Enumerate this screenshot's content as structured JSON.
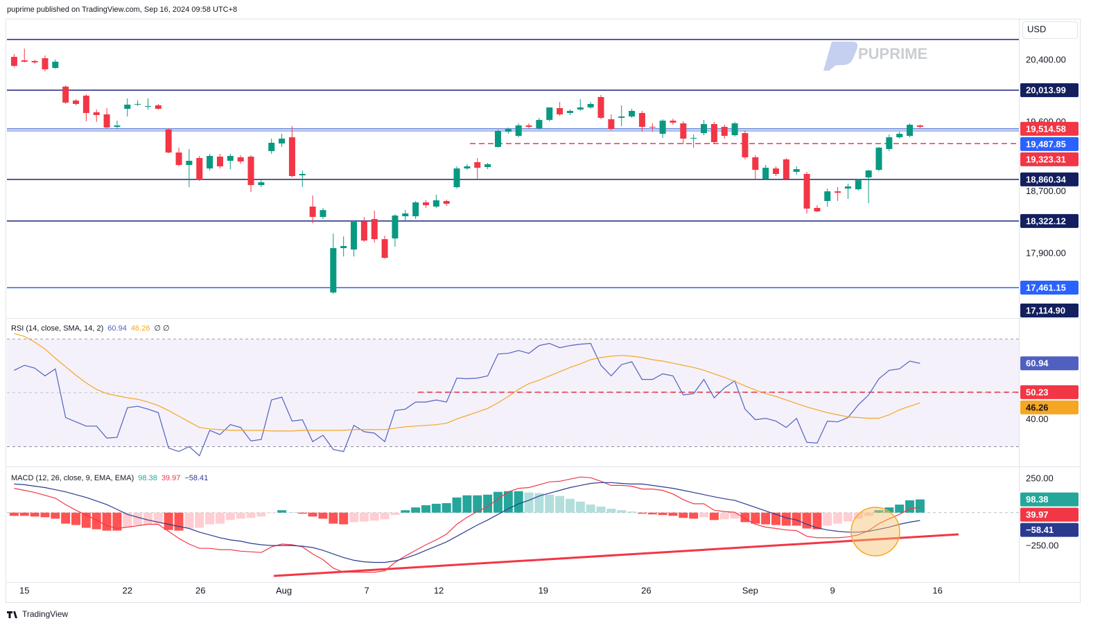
{
  "header": {
    "text": "puprime published on TradingView.com, Sep 16, 2024 09:58 UTC+8",
    "currency": "USD",
    "watermark": "PUPRIME",
    "footer": "TradingView"
  },
  "chart_data": [
    {
      "type": "candlestick",
      "up_color": "#089981",
      "down_color": "#f23645",
      "xlim": [
        -0.7,
        97.6
      ],
      "ylim": [
        17076,
        20929
      ],
      "yticks": [
        {
          "value": 20400,
          "label": "20,400.00"
        },
        {
          "value": 19600,
          "label": "19,600.00"
        },
        {
          "value": 18700,
          "label": "18,700.00"
        },
        {
          "value": 17900,
          "label": "17,900.00"
        }
      ],
      "xticks": [
        {
          "value": 1,
          "label": "15"
        },
        {
          "value": 11,
          "label": "22"
        },
        {
          "value": 18.1,
          "label": "26"
        },
        {
          "value": 26.2,
          "label": "Aug"
        },
        {
          "value": 34.25,
          "label": "7"
        },
        {
          "value": 41.25,
          "label": "12"
        },
        {
          "value": 51.4,
          "label": "19"
        },
        {
          "value": 61.4,
          "label": "26"
        },
        {
          "value": 71.5,
          "label": "Sep"
        },
        {
          "value": 79.5,
          "label": "9"
        },
        {
          "value": 89.7,
          "label": "16"
        }
      ],
      "open": [
        20445,
        20400,
        20391,
        20427,
        20301,
        20060,
        19880,
        19943,
        19728,
        19701,
        19540,
        19773,
        19827,
        19800,
        19818,
        19504,
        19208,
        19047,
        19137,
        19002,
        19155,
        19101,
        19146,
        19155,
        18787,
        19226,
        19325,
        19405,
        18913,
        18509,
        18375,
        17398,
        17972,
        17954,
        18321,
        18348,
        18088,
        18097,
        18384,
        18384,
        18563,
        18509,
        18581,
        18760,
        19002,
        19083,
        19020,
        19280,
        19477,
        19423,
        19558,
        19522,
        19629,
        19782,
        19719,
        19764,
        19791,
        19925,
        19638,
        19656,
        19674,
        19719,
        19540,
        19450,
        19620,
        19585,
        19388,
        19459,
        19576,
        19540,
        19432,
        19459,
        19146,
        18868,
        19002,
        19119,
        18958,
        18931,
        18492,
        18581,
        18706,
        18742,
        18733,
        18886,
        18984,
        19253,
        19405,
        19423,
        19558
      ],
      "high": [
        20481,
        20552,
        20409,
        20463,
        20409,
        20077,
        19898,
        19961,
        19764,
        19782,
        19620,
        19907,
        19880,
        19907,
        19836,
        19522,
        19271,
        19253,
        19164,
        19190,
        19190,
        19190,
        19173,
        19173,
        18850,
        19388,
        19450,
        19549,
        18975,
        18653,
        18491,
        18160,
        18124,
        18330,
        18375,
        18456,
        18133,
        18411,
        18465,
        18581,
        18590,
        18662,
        18599,
        19029,
        19056,
        19137,
        19074,
        19504,
        19531,
        19585,
        19585,
        19656,
        19791,
        19862,
        19764,
        19898,
        19862,
        19952,
        19701,
        19818,
        19773,
        19746,
        19585,
        19638,
        19647,
        19612,
        19441,
        19629,
        19603,
        19567,
        19603,
        19495,
        19173,
        19047,
        19029,
        19137,
        19029,
        18958,
        18527,
        18742,
        18760,
        18805,
        18868,
        18984,
        19280,
        19441,
        19477,
        19585,
        19567
      ],
      "low": [
        20310,
        20373,
        20355,
        20257,
        20292,
        19836,
        19818,
        19612,
        19603,
        19513,
        19513,
        19674,
        19809,
        19764,
        19764,
        19199,
        19029,
        18760,
        18841,
        18975,
        19002,
        18993,
        19065,
        18698,
        18760,
        19190,
        19280,
        18886,
        18760,
        18294,
        18348,
        17380,
        17864,
        17864,
        18052,
        18043,
        17837,
        17990,
        18330,
        18348,
        18492,
        18491,
        18518,
        18742,
        18984,
        18868,
        18993,
        19271,
        19450,
        19405,
        19522,
        19504,
        19612,
        19683,
        19692,
        19746,
        19773,
        19638,
        19495,
        19549,
        19656,
        19477,
        19477,
        19396,
        19567,
        19316,
        19271,
        19432,
        19325,
        19388,
        19414,
        19119,
        18868,
        18850,
        18904,
        18850,
        18922,
        18420,
        18438,
        18509,
        18581,
        18608,
        18716,
        18554,
        18966,
        19226,
        19388,
        19405,
        19522
      ],
      "close": [
        20328,
        20382,
        20373,
        20284,
        20382,
        19853,
        19836,
        19719,
        19692,
        19531,
        19558,
        19827,
        19836,
        19809,
        19773,
        19208,
        19047,
        19101,
        18859,
        19164,
        19029,
        19164,
        19092,
        18787,
        18823,
        19334,
        19388,
        18904,
        18931,
        18375,
        18464,
        17972,
        17999,
        18312,
        18070,
        18088,
        17846,
        18393,
        18420,
        18563,
        18527,
        18590,
        18545,
        19002,
        19029,
        19011,
        19056,
        19486,
        19513,
        19558,
        19540,
        19629,
        19791,
        19701,
        19746,
        19791,
        19836,
        19656,
        19513,
        19674,
        19746,
        19540,
        19531,
        19620,
        19594,
        19388,
        19396,
        19576,
        19343,
        19423,
        19585,
        19146,
        18984,
        19011,
        18931,
        18868,
        18993,
        18483,
        18447,
        18706,
        18688,
        18769,
        18850,
        18975,
        19271,
        19405,
        19450,
        19567,
        19540
      ],
      "levels": [
        {
          "value": 20669,
          "color": "#1a237e"
        },
        {
          "value": 20013.99,
          "label": "20,013.99",
          "color": "#1a237e",
          "label_color": "#131f5e"
        },
        {
          "value": 19514.58,
          "label": "19,514.58",
          "color": "#5b7bd5",
          "label_color": "#f23645"
        },
        {
          "value": 19487.85,
          "label": "19,487.85",
          "color": "#7f9be6",
          "label_color": "#2962ff"
        },
        {
          "value": 19323.31,
          "label": "19,323.31",
          "color": "#f23645",
          "label_color": "#f23645",
          "style": "dashed"
        },
        {
          "value": 18860.34,
          "label": "18,860.34",
          "color": "#1a237e",
          "label_color": "#131f5e"
        },
        {
          "value": 18322.12,
          "label": "18,322.12",
          "color": "#1a237e",
          "label_color": "#131f5e"
        },
        {
          "value": 17461.15,
          "label": "17,461.15",
          "color": "#2962ff",
          "label_color": "#2962ff"
        },
        {
          "value": 17114.9,
          "label": "17,114.90",
          "label_color": "#131f5e"
        }
      ]
    },
    {
      "type": "line",
      "title": "RSI (14, close, SMA, 14, 2)",
      "legend_suffix": "∅ ∅",
      "ylim": [
        22.9,
        77.5
      ],
      "yticks": [
        {
          "value": 40,
          "label": "40.00"
        }
      ],
      "band": [
        30,
        70
      ],
      "band_color": "#ede7f6",
      "midline": 50,
      "levels": [
        {
          "value": 50.23,
          "color": "#f23645"
        }
      ],
      "series": [
        {
          "color": "#5060c0",
          "values": [
            58.37,
            60.21,
            59.16,
            56.27,
            58.9,
            40.79,
            39.21,
            37.64,
            37.64,
            33.18,
            33.44,
            44.46,
            44.99,
            43.94,
            42.62,
            29.5,
            28.19,
            30.03,
            26.61,
            36.06,
            34.49,
            38.16,
            37.11,
            32.13,
            32.65,
            47.35,
            48.4,
            39.48,
            40.0,
            31.86,
            34.23,
            28.98,
            28.19,
            37.9,
            35.54,
            35.01,
            31.86,
            43.41,
            43.94,
            46.56,
            46.56,
            47.35,
            46.56,
            55.49,
            55.22,
            55.49,
            56.27,
            64.41,
            64.67,
            65.72,
            64.67,
            67.56,
            68.35,
            66.77,
            67.56,
            68.08,
            68.35,
            60.21,
            56.27,
            60.47,
            61.52,
            54.96,
            54.96,
            57.06,
            56.27,
            49.19,
            49.71,
            54.96,
            48.14,
            51.81,
            54.44,
            43.94,
            40.0,
            40.52,
            39.48,
            37.11,
            40.52,
            31.6,
            31.34,
            39.48,
            39.21,
            40.79,
            45.51,
            49.19,
            55.22,
            58.37,
            58.9,
            61.78,
            60.94
          ]
        },
        {
          "color": "#f5a623",
          "values": [
            72.02,
            70.97,
            68.87,
            66.25,
            62.84,
            59.69,
            56.54,
            53.65,
            51.29,
            49.71,
            48.92,
            48.14,
            47.61,
            46.56,
            45.25,
            43.41,
            41.31,
            39.21,
            37.11,
            36.59,
            36.33,
            36.06,
            36.06,
            36.06,
            36.06,
            35.8,
            35.8,
            35.8,
            36.06,
            36.06,
            36.06,
            36.06,
            36.06,
            36.33,
            36.33,
            36.33,
            36.33,
            36.85,
            37.38,
            37.64,
            37.9,
            38.16,
            38.69,
            40.26,
            41.58,
            42.89,
            44.2,
            46.3,
            48.66,
            51.29,
            53.39,
            54.7,
            56.28,
            57.85,
            59.43,
            60.74,
            62.31,
            63.1,
            63.63,
            63.89,
            63.63,
            63.1,
            62.31,
            61.79,
            61.0,
            60.21,
            59.43,
            58.38,
            57.06,
            55.75,
            54.18,
            52.6,
            51.03,
            49.71,
            48.66,
            47.35,
            46.04,
            44.73,
            43.68,
            42.63,
            41.84,
            41.05,
            40.79,
            40.53,
            40.53,
            41.84,
            43.68,
            44.99,
            46.26
          ]
        }
      ]
    },
    {
      "type": "macd",
      "title": "MACD (12, 26, close, 9, EMA, EMA)",
      "ylim": [
        -518,
        334
      ],
      "yticks": [
        {
          "value": 250,
          "label": "250.00"
        },
        {
          "value": -250,
          "label": "−250.00"
        }
      ],
      "histogram": {
        "colors": [
          "#26a69a",
          "#b2dfdb",
          "#ff5252",
          "#ffcdd2"
        ],
        "values": [
          -24,
          -24,
          -29,
          -34,
          -45,
          -82,
          -92,
          -113,
          -124,
          -134,
          -134,
          -108,
          -92,
          -87,
          -82,
          -129,
          -134,
          -118,
          -113,
          -87,
          -82,
          -55,
          -45,
          -39,
          -29,
          -3,
          18,
          3,
          -8,
          -29,
          -45,
          -82,
          -87,
          -71,
          -66,
          -60,
          -50,
          -18,
          18,
          39,
          55,
          66,
          71,
          113,
          129,
          129,
          134,
          155,
          160,
          160,
          150,
          145,
          134,
          124,
          103,
          82,
          60,
          45,
          29,
          18,
          8,
          -8,
          -13,
          -18,
          -24,
          -39,
          -45,
          -34,
          -55,
          -50,
          -45,
          -71,
          -82,
          -87,
          -92,
          -97,
          -97,
          -118,
          -124,
          -97,
          -82,
          -66,
          -45,
          -24,
          18,
          39,
          60,
          92,
          98.38
        ]
      },
      "series": [
        {
          "color": "#f23645",
          "values": [
            181,
            166,
            150,
            129,
            108,
            60,
            18,
            -18,
            -55,
            -97,
            -118,
            -108,
            -97,
            -87,
            -87,
            -139,
            -192,
            -234,
            -266,
            -266,
            -276,
            -276,
            -287,
            -292,
            -297,
            -255,
            -234,
            -239,
            -255,
            -308,
            -350,
            -413,
            -444,
            -444,
            -444,
            -444,
            -434,
            -371,
            -323,
            -281,
            -239,
            -203,
            -160,
            -87,
            -34,
            8,
            45,
            103,
            155,
            181,
            187,
            208,
            229,
            234,
            250,
            266,
            260,
            234,
            203,
            203,
            197,
            176,
            176,
            166,
            139,
            97,
            66,
            66,
            18,
            8,
            3,
            -45,
            -87,
            -108,
            -118,
            -129,
            -134,
            -176,
            -187,
            -187,
            -187,
            -181,
            -166,
            -134,
            -82,
            -45,
            -13,
            29,
            39.97
          ]
        },
        {
          "color": "#2a3a8f",
          "last_value_label": "−58.41",
          "values": [
            213,
            208,
            197,
            187,
            171,
            155,
            134,
            113,
            87,
            60,
            24,
            -13,
            -34,
            -55,
            -71,
            -87,
            -103,
            -118,
            -145,
            -166,
            -187,
            -203,
            -213,
            -229,
            -239,
            -245,
            -245,
            -245,
            -250,
            -260,
            -281,
            -308,
            -334,
            -355,
            -366,
            -371,
            -371,
            -360,
            -339,
            -313,
            -281,
            -250,
            -218,
            -176,
            -134,
            -92,
            -55,
            -13,
            29,
            66,
            92,
            124,
            145,
            166,
            187,
            203,
            218,
            224,
            224,
            218,
            213,
            213,
            203,
            192,
            181,
            166,
            150,
            134,
            118,
            103,
            92,
            66,
            39,
            13,
            -13,
            -39,
            -55,
            -87,
            -113,
            -129,
            -139,
            -145,
            -145,
            -139,
            -124,
            -108,
            -87,
            -71,
            -58.41
          ]
        }
      ]
    }
  ]
}
